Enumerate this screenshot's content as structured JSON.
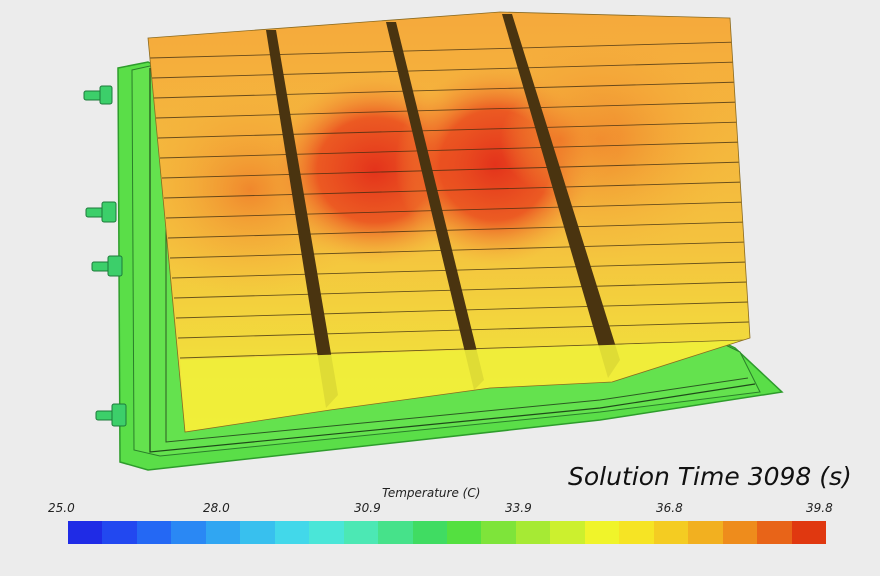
{
  "scene": {
    "label_text": "Solution Time 3098 (s)"
  },
  "legend": {
    "title": "Temperature (C)",
    "ticks": [
      "25.0",
      "28.0",
      "30.9",
      "33.9",
      "36.8",
      "39.8"
    ],
    "colors": [
      "#1f2be6",
      "#2248f0",
      "#2468f4",
      "#2a88f4",
      "#30a6f2",
      "#38c0ee",
      "#42d8ea",
      "#4ae6d8",
      "#4ce8b4",
      "#46e28a",
      "#40dc62",
      "#54e040",
      "#7ee43a",
      "#a6ea34",
      "#ccf02e",
      "#f0f42a",
      "#f6e424",
      "#f4cc22",
      "#f2b020",
      "#ee8c1c",
      "#e86418",
      "#e03810"
    ]
  },
  "model": {
    "colors": {
      "plate": "#58e04a",
      "plate_edge": "#2e9c2c",
      "cold": "#eef23a",
      "warm": "#f5b23c",
      "hot": "#e53a1c",
      "fitting": "#3ccf6a"
    }
  }
}
